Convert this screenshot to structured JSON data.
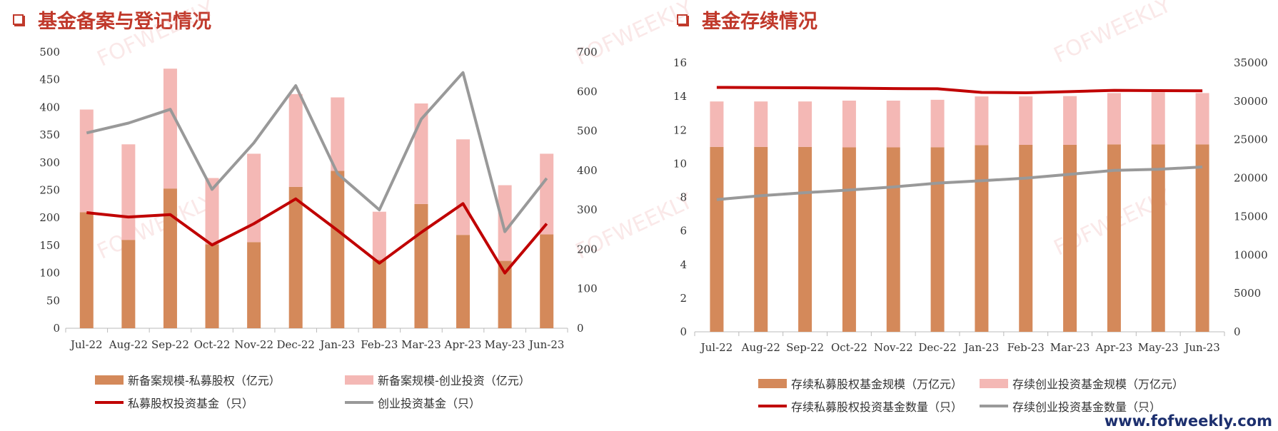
{
  "titles": {
    "left": "基金备案与登记情况",
    "right": "基金存续情况"
  },
  "watermark": "FOFWEEKLY",
  "footer": "www.fofweekly.com",
  "colors": {
    "bar_primary": "#d4895a",
    "bar_secondary": "#f4b8b5",
    "line_primary": "#c00000",
    "line_secondary": "#999999",
    "title": "#c0392b"
  },
  "chart_data": [
    {
      "type": "bar",
      "stacked": true,
      "categories": [
        "Jul-22",
        "Aug-22",
        "Sep-22",
        "Oct-22",
        "Nov-22",
        "Dec-22",
        "Jan-23",
        "Feb-23",
        "Mar-23",
        "Apr-23",
        "May-23",
        "Jun-23"
      ],
      "series": [
        {
          "name": "新备案规模-私募股权（亿元）",
          "kind": "bar",
          "axis": "left",
          "values": [
            210,
            160,
            253,
            152,
            156,
            256,
            285,
            124,
            225,
            169,
            122,
            170
          ]
        },
        {
          "name": "新备案规模-创业投资（亿元）",
          "kind": "bar",
          "axis": "left",
          "values": [
            186,
            173,
            217,
            120,
            160,
            168,
            133,
            87,
            182,
            173,
            137,
            146
          ]
        },
        {
          "name": "私募股权投资基金（只）",
          "kind": "line",
          "axis": "right",
          "values": [
            293,
            282,
            288,
            211,
            265,
            328,
            248,
            165,
            243,
            316,
            140,
            265
          ]
        },
        {
          "name": "创业投资基金（只）",
          "kind": "line",
          "axis": "right",
          "values": [
            495,
            520,
            555,
            352,
            470,
            615,
            392,
            300,
            530,
            648,
            245,
            380
          ]
        }
      ],
      "ylim": [
        0,
        500
      ],
      "yticks": [
        0,
        50,
        100,
        150,
        200,
        250,
        300,
        350,
        400,
        450,
        500
      ],
      "y2lim": [
        0,
        700
      ],
      "y2ticks": [
        0,
        100,
        200,
        300,
        400,
        500,
        600,
        700
      ]
    },
    {
      "type": "bar",
      "stacked": true,
      "categories": [
        "Jul-22",
        "Aug-22",
        "Sep-22",
        "Oct-22",
        "Nov-22",
        "Dec-22",
        "Jan-23",
        "Feb-23",
        "Mar-23",
        "Apr-23",
        "May-23",
        "Jun-23"
      ],
      "series": [
        {
          "name": "存续私募股权基金规模（万亿元）",
          "kind": "bar",
          "axis": "left",
          "values": [
            11.0,
            11.0,
            11.0,
            10.97,
            10.97,
            10.98,
            11.1,
            11.12,
            11.12,
            11.15,
            11.15,
            11.15
          ]
        },
        {
          "name": "存续创业投资基金规模（万亿元）",
          "kind": "bar",
          "axis": "left",
          "values": [
            2.7,
            2.7,
            2.7,
            2.78,
            2.78,
            2.82,
            2.9,
            2.88,
            2.9,
            3.05,
            3.1,
            3.05
          ]
        },
        {
          "name": "存续私募股权投资基金数量（只）",
          "kind": "line",
          "axis": "right",
          "values": [
            31800,
            31780,
            31750,
            31700,
            31650,
            31620,
            31150,
            31100,
            31250,
            31420,
            31380,
            31360
          ]
        },
        {
          "name": "存续创业投资基金数量（只）",
          "kind": "line",
          "axis": "right",
          "values": [
            17200,
            17700,
            18100,
            18450,
            18850,
            19350,
            19650,
            20000,
            20500,
            21000,
            21150,
            21450
          ]
        }
      ],
      "ylim": [
        0,
        16
      ],
      "yticks": [
        0,
        2,
        4,
        6,
        8,
        10,
        12,
        14,
        16
      ],
      "y2lim": [
        0,
        35000
      ],
      "y2ticks": [
        0,
        5000,
        10000,
        15000,
        20000,
        25000,
        30000,
        35000
      ]
    }
  ]
}
